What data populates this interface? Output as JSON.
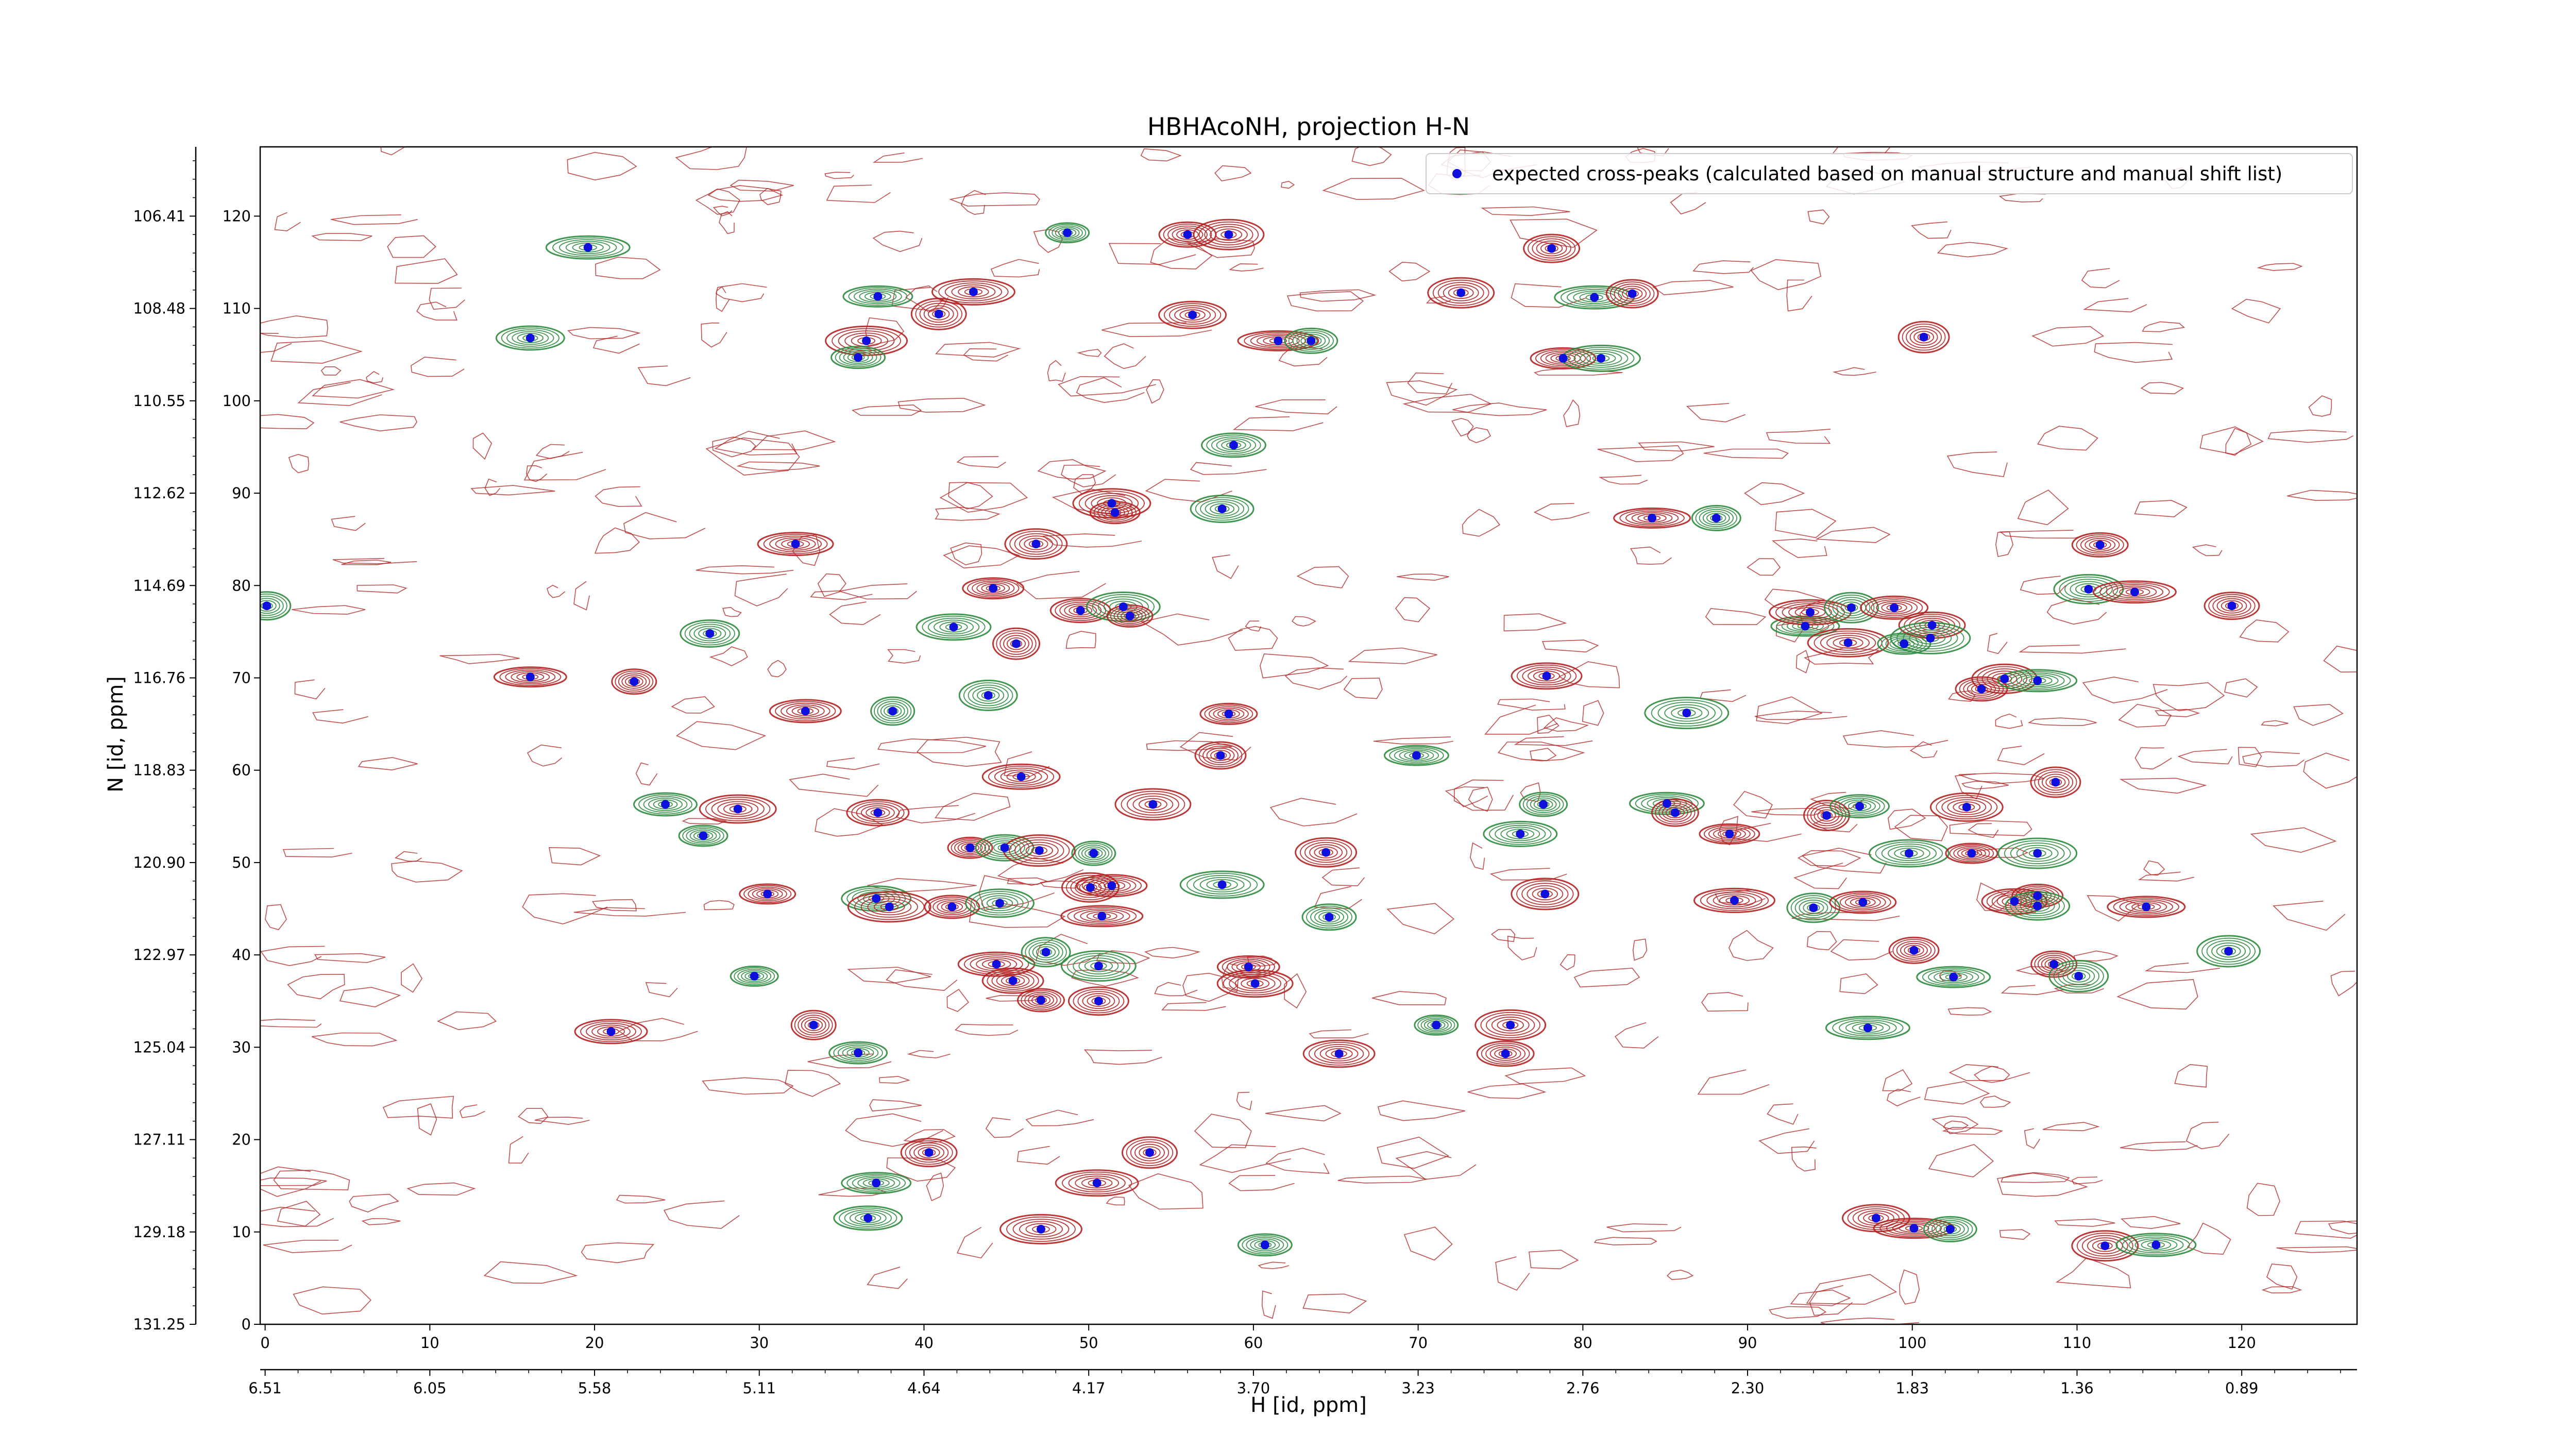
{
  "chart_data": {
    "type": "scatter",
    "title": "HBHAcoNH, projection H-N",
    "xlabel": "H [id, ppm]",
    "ylabel": "N [id, ppm]",
    "xlim": [
      -0.3,
      127
    ],
    "ylim": [
      0,
      127.5
    ],
    "x_ticks_index": [
      "0",
      "10",
      "20",
      "30",
      "40",
      "50",
      "60",
      "70",
      "80",
      "90",
      "100",
      "110",
      "120"
    ],
    "x_ticks_ppm": [
      "6.51",
      "6.05",
      "5.58",
      "5.11",
      "4.64",
      "4.17",
      "3.70",
      "3.23",
      "2.76",
      "2.30",
      "1.83",
      "1.36",
      "0.89"
    ],
    "y_ticks_index": [
      "0",
      "10",
      "20",
      "30",
      "40",
      "50",
      "60",
      "70",
      "80",
      "90",
      "100",
      "110",
      "120"
    ],
    "y_ticks_ppm": [
      "131.25",
      "129.18",
      "127.11",
      "125.04",
      "122.97",
      "120.90",
      "118.83",
      "116.76",
      "114.69",
      "112.62",
      "110.55",
      "108.48",
      "106.41"
    ],
    "legend": {
      "position": "top-right",
      "entry": "expected cross-peaks (calculated based on manual structure and manual shift list)"
    },
    "colors": {
      "positive": "#b22222",
      "negative": "#2e8b3e",
      "marker": "#1010dd"
    },
    "series": [
      {
        "name": "expected cross-peaks (calculated based on manual structure and manual shift list)",
        "points": [
          [
            48.7,
            118.2
          ],
          [
            56,
            118
          ],
          [
            58.5,
            118
          ],
          [
            19.6,
            116.6
          ],
          [
            78.1,
            116.5
          ],
          [
            37.2,
            111.3
          ],
          [
            43,
            111.8
          ],
          [
            40.9,
            109.4
          ],
          [
            16.1,
            106.8
          ],
          [
            36.5,
            106.5
          ],
          [
            36,
            104.7
          ],
          [
            56.3,
            109.3
          ],
          [
            61.5,
            106.5
          ],
          [
            63.5,
            106.5
          ],
          [
            72.6,
            111.7
          ],
          [
            80.7,
            111.2
          ],
          [
            83,
            111.6
          ],
          [
            78.8,
            104.6
          ],
          [
            81.1,
            104.6
          ],
          [
            100.7,
            106.9
          ],
          [
            58.8,
            95.2
          ],
          [
            51.4,
            88.9
          ],
          [
            51.6,
            87.9
          ],
          [
            58.1,
            88.3
          ],
          [
            84.2,
            87.3
          ],
          [
            88.1,
            87.3
          ],
          [
            46.8,
            84.5
          ],
          [
            32.2,
            84.5
          ],
          [
            0.1,
            77.8
          ],
          [
            44.2,
            79.7
          ],
          [
            41.8,
            75.5
          ],
          [
            45.6,
            73.7
          ],
          [
            49.5,
            77.3
          ],
          [
            52.1,
            77.7
          ],
          [
            52.5,
            76.7
          ],
          [
            27,
            74.8
          ],
          [
            16.1,
            70.1
          ],
          [
            22.4,
            69.6
          ],
          [
            43.9,
            68.1
          ],
          [
            32.8,
            66.4
          ],
          [
            38.1,
            66.4
          ],
          [
            58.5,
            66.1
          ],
          [
            77.8,
            70.2
          ],
          [
            86.3,
            66.2
          ],
          [
            111.4,
            84.4
          ],
          [
            110.7,
            79.6
          ],
          [
            113.5,
            79.3
          ],
          [
            119.4,
            77.8
          ],
          [
            93.5,
            75.6
          ],
          [
            93.8,
            77.1
          ],
          [
            96.3,
            77.6
          ],
          [
            98.9,
            77.6
          ],
          [
            96.1,
            73.8
          ],
          [
            99.5,
            73.7
          ],
          [
            101.2,
            75.7
          ],
          [
            101.1,
            74.3
          ],
          [
            104.2,
            68.8
          ],
          [
            105.6,
            69.9
          ],
          [
            107.6,
            69.7
          ],
          [
            58,
            61.6
          ],
          [
            69.9,
            61.6
          ],
          [
            45.9,
            59.3
          ],
          [
            108.7,
            58.7
          ],
          [
            24.3,
            56.3
          ],
          [
            28.7,
            55.8
          ],
          [
            26.6,
            52.9
          ],
          [
            37.2,
            55.4
          ],
          [
            53.9,
            56.3
          ],
          [
            77.6,
            56.3
          ],
          [
            64.4,
            51.1
          ],
          [
            85.1,
            56.4
          ],
          [
            85.6,
            55.4
          ],
          [
            88.9,
            53.1
          ],
          [
            76.2,
            53.1
          ],
          [
            94.8,
            55.1
          ],
          [
            96.8,
            56.1
          ],
          [
            103.3,
            56
          ],
          [
            42.8,
            51.6
          ],
          [
            44.9,
            51.6
          ],
          [
            47,
            51.3
          ],
          [
            50.3,
            51
          ],
          [
            50.1,
            47.3
          ],
          [
            51.4,
            47.5
          ],
          [
            58.1,
            47.6
          ],
          [
            30.5,
            46.6
          ],
          [
            37.1,
            46.1
          ],
          [
            37.9,
            45.2
          ],
          [
            41.7,
            45.2
          ],
          [
            44.6,
            45.6
          ],
          [
            50.8,
            44.2
          ],
          [
            64.6,
            44.1
          ],
          [
            77.7,
            46.6
          ],
          [
            89.2,
            45.9
          ],
          [
            94,
            45.1
          ],
          [
            97,
            45.7
          ],
          [
            99.8,
            51
          ],
          [
            103.6,
            51
          ],
          [
            106.2,
            45.8
          ],
          [
            107.6,
            51
          ],
          [
            107.6,
            46.4
          ],
          [
            107.6,
            45.3
          ],
          [
            114.2,
            45.2
          ],
          [
            100.1,
            40.5
          ],
          [
            119.2,
            40.4
          ],
          [
            44.4,
            39
          ],
          [
            47.4,
            40.3
          ],
          [
            59.7,
            38.7
          ],
          [
            60.1,
            36.9
          ],
          [
            29.7,
            37.7
          ],
          [
            45.4,
            37.2
          ],
          [
            50.6,
            38.8
          ],
          [
            47.1,
            35.1
          ],
          [
            50.6,
            35
          ],
          [
            102.5,
            37.6
          ],
          [
            108.6,
            39
          ],
          [
            110.1,
            37.7
          ],
          [
            21,
            31.7
          ],
          [
            33.3,
            32.4
          ],
          [
            36,
            29.4
          ],
          [
            65.2,
            29.3
          ],
          [
            71.1,
            32.4
          ],
          [
            75.3,
            29.3
          ],
          [
            75.6,
            32.4
          ],
          [
            97.3,
            32.1
          ],
          [
            40.3,
            18.6
          ],
          [
            37.1,
            15.3
          ],
          [
            50.5,
            15.3
          ],
          [
            53.7,
            18.6
          ],
          [
            36.6,
            11.5
          ],
          [
            47.1,
            10.3
          ],
          [
            60.7,
            8.6
          ],
          [
            97.8,
            11.5
          ],
          [
            100.1,
            10.4
          ],
          [
            102.3,
            10.3
          ],
          [
            111.7,
            8.5
          ],
          [
            114.8,
            8.6
          ]
        ]
      }
    ]
  }
}
